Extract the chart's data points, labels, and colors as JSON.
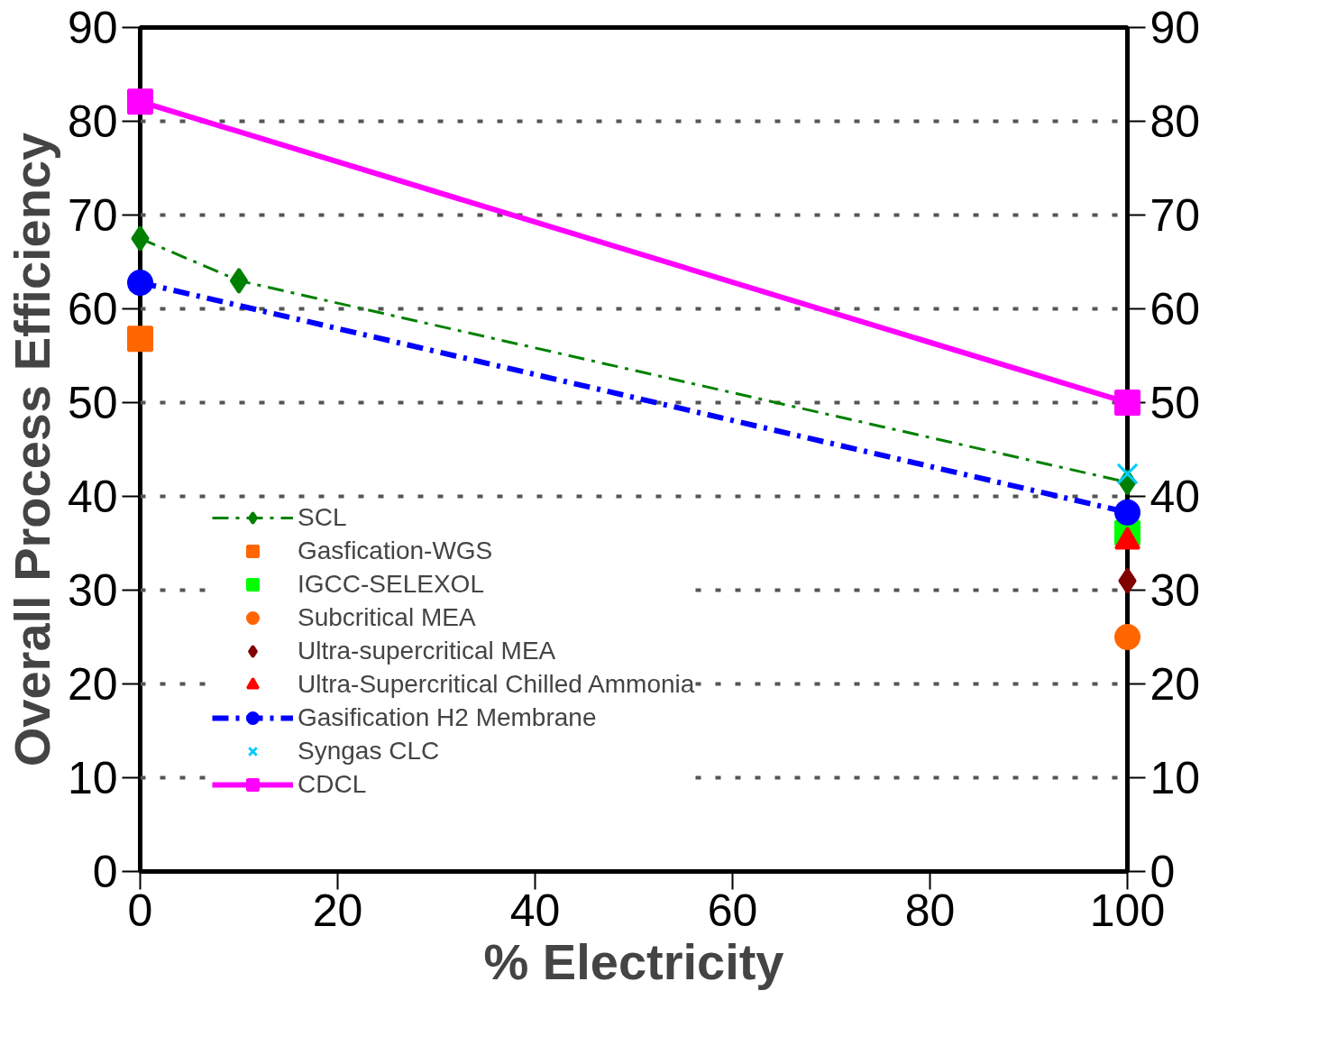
{
  "chart_data": {
    "type": "line",
    "xlabel": "% Electricity",
    "ylabel": "Overall Process Efficiency",
    "xlim": [
      0,
      100
    ],
    "xticks": [
      0,
      20,
      40,
      60,
      80,
      100
    ],
    "ylim": [
      0,
      90
    ],
    "yticks": [
      0,
      10,
      20,
      30,
      40,
      50,
      60,
      70,
      80,
      90
    ],
    "y2lim": [
      0,
      90
    ],
    "y2ticks": [
      0,
      10,
      20,
      30,
      40,
      50,
      60,
      70,
      80,
      90
    ],
    "grid": "y",
    "legend": "bottom left",
    "series": [
      {
        "name": "SCL",
        "color": "#008000",
        "x": [
          0,
          10,
          100
        ],
        "values": [
          67.5,
          63.0,
          41.5
        ],
        "marker": "diamond",
        "line_style": "dashed"
      },
      {
        "name": "Gasfication-WGS",
        "type": "scatter",
        "color": "#ff6600",
        "x": [
          0
        ],
        "values": [
          56.8
        ],
        "marker": "square"
      },
      {
        "name": "IGCC-SELEXOL",
        "type": "scatter",
        "color": "#00ff00",
        "x": [
          100
        ],
        "values": [
          36.1
        ],
        "marker": "square"
      },
      {
        "name": "Subcritical MEA",
        "type": "scatter",
        "color": "#ff6600",
        "x": [
          100
        ],
        "values": [
          25.0
        ],
        "marker": "circle"
      },
      {
        "name": "Ultra-supercritical MEA",
        "type": "scatter",
        "color": "#800000",
        "x": [
          100
        ],
        "values": [
          31.0
        ],
        "marker": "diamond"
      },
      {
        "name": "Ultra-Supercritical Chilled Ammonia",
        "type": "scatter",
        "color": "#ff0000",
        "x": [
          100
        ],
        "values": [
          35.2
        ],
        "marker": "triangle"
      },
      {
        "name": "Gasification H2 Membrane",
        "color": "#0000ff",
        "x": [
          0,
          100
        ],
        "values": [
          62.8,
          38.3
        ],
        "marker": "circle",
        "line_style": "dashed"
      },
      {
        "name": "Syngas CLC",
        "type": "scatter",
        "color": "#00ccff",
        "x": [
          100
        ],
        "values": [
          42.4
        ],
        "marker": "cross"
      },
      {
        "name": "CDCL",
        "color": "#ff00ff",
        "x": [
          0,
          100
        ],
        "values": [
          82.1,
          50.0
        ],
        "marker": "square",
        "line_style": "solid"
      }
    ]
  }
}
